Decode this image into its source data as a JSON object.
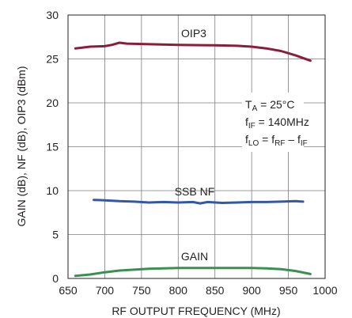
{
  "chart_data": {
    "type": "line",
    "xlabel": "RF OUTPUT FREQUENCY (MHz)",
    "ylabel": "GAIN (dB), NF (dB), OIP3 (dBm)",
    "xlim": [
      650,
      1000
    ],
    "ylim": [
      0,
      30
    ],
    "xticks": [
      650,
      700,
      750,
      800,
      850,
      900,
      950,
      1000
    ],
    "yticks": [
      0,
      5,
      10,
      15,
      20,
      25,
      30
    ],
    "grid": true,
    "conditions": {
      "ta": {
        "main": "T",
        "sub": "A",
        "rest": " = 25°C"
      },
      "fif": {
        "main": "f",
        "sub": "IF",
        "rest": " = 140MHz"
      },
      "flo": {
        "main": "f",
        "sub": "LO",
        "mid": " = f",
        "sub2": "RF",
        "mid2": " – f",
        "sub3": "IF"
      }
    },
    "series": [
      {
        "name": "OIP3",
        "color": "#8c1d3a",
        "x": [
          660,
          680,
          700,
          710,
          720,
          730,
          750,
          800,
          850,
          880,
          900,
          920,
          940,
          960,
          980
        ],
        "y": [
          26.2,
          26.4,
          26.45,
          26.6,
          26.85,
          26.75,
          26.7,
          26.6,
          26.55,
          26.5,
          26.4,
          26.2,
          25.9,
          25.4,
          24.8
        ]
      },
      {
        "name": "SSB NF",
        "color": "#3558a6",
        "x": [
          685,
          700,
          720,
          740,
          760,
          780,
          800,
          820,
          830,
          840,
          860,
          880,
          900,
          920,
          940,
          960,
          970
        ],
        "y": [
          8.95,
          8.9,
          8.8,
          8.75,
          8.65,
          8.7,
          8.65,
          8.7,
          8.55,
          8.7,
          8.6,
          8.65,
          8.7,
          8.7,
          8.75,
          8.8,
          8.75
        ]
      },
      {
        "name": "GAIN",
        "color": "#3b8f52",
        "x": [
          660,
          680,
          700,
          720,
          740,
          760,
          780,
          800,
          820,
          840,
          860,
          880,
          900,
          920,
          940,
          960,
          980
        ],
        "y": [
          0.3,
          0.45,
          0.7,
          0.9,
          1.0,
          1.1,
          1.15,
          1.2,
          1.2,
          1.2,
          1.2,
          1.2,
          1.2,
          1.15,
          1.05,
          0.85,
          0.5
        ]
      }
    ]
  }
}
